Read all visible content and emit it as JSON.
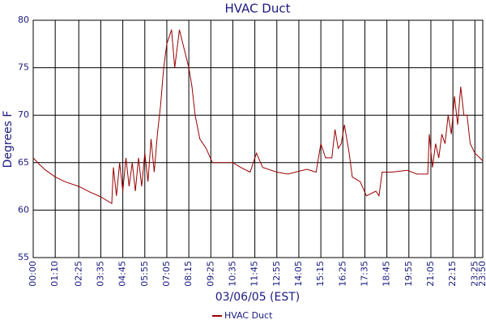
{
  "chart_data": {
    "type": "line",
    "title": "HVAC Duct",
    "x_label": "03/06/05 (EST)",
    "y_label": "Degrees F",
    "x": [
      "00:00",
      "00:20",
      "00:40",
      "01:10",
      "01:40",
      "02:25",
      "03:00",
      "03:35",
      "04:10",
      "04:15",
      "04:25",
      "04:35",
      "04:45",
      "04:55",
      "05:05",
      "05:15",
      "05:25",
      "05:35",
      "05:45",
      "05:55",
      "06:05",
      "06:15",
      "06:25",
      "06:35",
      "06:45",
      "06:55",
      "07:05",
      "07:15",
      "07:20",
      "07:30",
      "07:45",
      "08:00",
      "08:15",
      "08:25",
      "08:35",
      "08:50",
      "09:10",
      "09:30",
      "10:35",
      "11:00",
      "11:30",
      "11:50",
      "12:10",
      "12:55",
      "13:30",
      "14:30",
      "15:00",
      "15:15",
      "15:30",
      "15:50",
      "16:00",
      "16:10",
      "16:20",
      "16:30",
      "16:45",
      "16:55",
      "17:20",
      "17:40",
      "18:10",
      "18:20",
      "18:30",
      "19:00",
      "19:50",
      "20:20",
      "20:55",
      "21:00",
      "21:10",
      "21:20",
      "21:30",
      "21:40",
      "21:50",
      "22:00",
      "22:10",
      "22:20",
      "22:30",
      "22:40",
      "22:50",
      "23:00",
      "23:10",
      "23:25",
      "23:50"
    ],
    "series": [
      {
        "name": "HVAC Duct",
        "color": "#990000",
        "values": [
          65.5,
          64.8,
          64.2,
          63.5,
          63.0,
          62.5,
          61.9,
          61.4,
          60.7,
          64.5,
          61.5,
          65,
          62,
          65.5,
          62.5,
          65,
          62,
          65.5,
          62.5,
          66,
          63,
          67.5,
          64,
          68,
          71,
          75,
          77.5,
          78.5,
          79,
          75,
          79,
          77,
          75,
          73,
          70,
          67.5,
          66.5,
          65,
          65,
          64.5,
          64,
          66,
          64.5,
          64,
          63.8,
          64.3,
          64,
          67,
          65.5,
          65.5,
          68.5,
          66.5,
          67,
          69,
          66,
          63.5,
          63,
          61.5,
          62,
          61.5,
          64,
          64,
          64.2,
          63.8,
          63.8,
          68,
          64.5,
          67,
          65.5,
          68,
          67,
          70,
          68,
          72,
          69,
          73,
          70,
          70,
          67,
          66,
          65.2
        ]
      }
    ],
    "xlim": [
      "00:00",
      "23:50"
    ],
    "xticks": [
      "00:00",
      "01:10",
      "02:25",
      "03:35",
      "04:45",
      "05:55",
      "07:05",
      "08:15",
      "09:25",
      "10:35",
      "11:45",
      "12:55",
      "14:05",
      "15:15",
      "16:25",
      "17:35",
      "18:45",
      "19:55",
      "21:05",
      "22:15",
      "23:25",
      "23:50"
    ],
    "ylim": [
      55,
      80
    ],
    "yticks": [
      55,
      60,
      65,
      70,
      75,
      80
    ],
    "grid": true,
    "legend": "bottom"
  }
}
